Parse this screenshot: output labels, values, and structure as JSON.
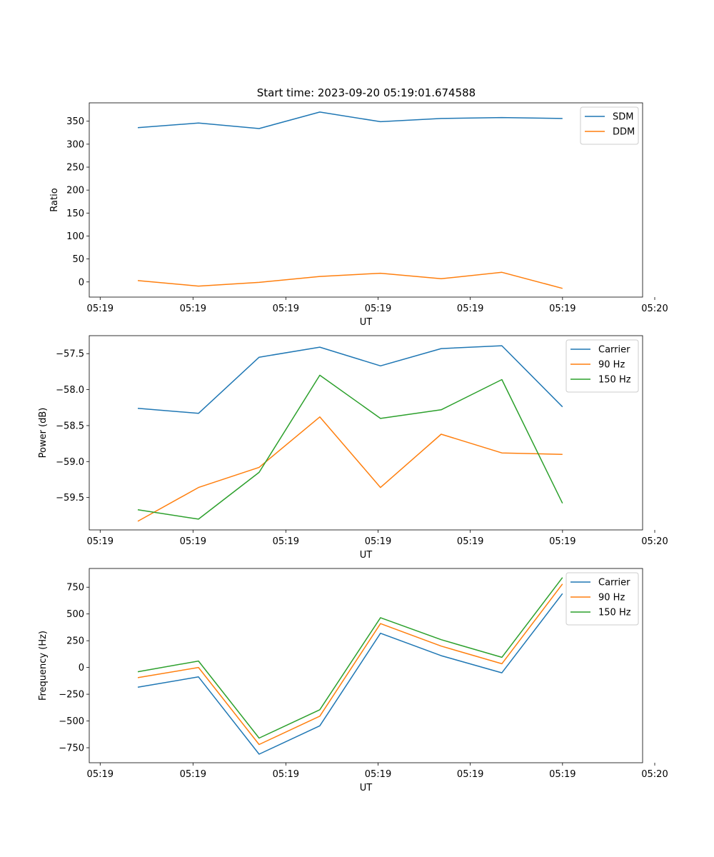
{
  "figure": {
    "title": "Start time: 2023-09-20 05:19:01.674588"
  },
  "chart_data": [
    {
      "type": "line",
      "title": "Start time: 2023-09-20 05:19:01.674588",
      "xlabel": "UT",
      "ylabel": "Ratio",
      "x": [
        1,
        2,
        3,
        4,
        5,
        6,
        7,
        8
      ],
      "xlim": [
        0.2,
        9.32
      ],
      "xticks": [
        0.38,
        1.91,
        3.44,
        4.96,
        6.48,
        8.0,
        9.52
      ],
      "xtick_labels": [
        "05:19",
        "05:19",
        "05:19",
        "05:19",
        "05:19",
        "05:19",
        "05:20"
      ],
      "ylim": [
        -33,
        390
      ],
      "yticks": [
        0,
        50,
        100,
        150,
        200,
        250,
        300,
        350
      ],
      "ytick_labels": [
        "0",
        "50",
        "100",
        "150",
        "200",
        "250",
        "300",
        "350"
      ],
      "legend_position": "top-right",
      "series": [
        {
          "name": "SDM",
          "color": "#1f77b4",
          "values": [
            336,
            346,
            334,
            370,
            349,
            356,
            358,
            356
          ]
        },
        {
          "name": "DDM",
          "color": "#ff7f0e",
          "values": [
            3,
            -9,
            -1,
            12,
            19,
            7,
            21,
            -14
          ]
        }
      ]
    },
    {
      "type": "line",
      "xlabel": "UT",
      "ylabel": "Power (dB)",
      "x": [
        1,
        2,
        3,
        4,
        5,
        6,
        7,
        8
      ],
      "xlim": [
        0.2,
        9.32
      ],
      "xticks": [
        0.38,
        1.91,
        3.44,
        4.96,
        6.48,
        8.0,
        9.52
      ],
      "xtick_labels": [
        "05:19",
        "05:19",
        "05:19",
        "05:19",
        "05:19",
        "05:19",
        "05:20"
      ],
      "ylim": [
        -59.95,
        -57.25
      ],
      "yticks": [
        -59.5,
        -59.0,
        -58.5,
        -58.0,
        -57.5
      ],
      "ytick_labels": [
        "−59.5",
        "−59.0",
        "−58.5",
        "−58.0",
        "−57.5"
      ],
      "legend_position": "top-right",
      "series": [
        {
          "name": "Carrier",
          "color": "#1f77b4",
          "values": [
            -58.26,
            -58.33,
            -57.55,
            -57.41,
            -57.67,
            -57.43,
            -57.39,
            -58.24
          ]
        },
        {
          "name": "90 Hz",
          "color": "#ff7f0e",
          "values": [
            -59.83,
            -59.36,
            -59.08,
            -58.38,
            -59.36,
            -58.62,
            -58.88,
            -58.9
          ]
        },
        {
          "name": "150 Hz",
          "color": "#2ca02c",
          "values": [
            -59.67,
            -59.8,
            -59.15,
            -57.8,
            -58.4,
            -58.28,
            -57.86,
            -59.58
          ]
        }
      ]
    },
    {
      "type": "line",
      "xlabel": "UT",
      "ylabel": "Frequency (Hz)",
      "x": [
        1,
        2,
        3,
        4,
        5,
        6,
        7,
        8
      ],
      "xlim": [
        0.2,
        9.32
      ],
      "xticks": [
        0.38,
        1.91,
        3.44,
        4.96,
        6.48,
        8.0,
        9.52
      ],
      "xtick_labels": [
        "05:19",
        "05:19",
        "05:19",
        "05:19",
        "05:19",
        "05:19",
        "05:20"
      ],
      "ylim": [
        -890,
        925
      ],
      "yticks": [
        -750,
        -500,
        -250,
        0,
        250,
        500,
        750
      ],
      "ytick_labels": [
        "−750",
        "−500",
        "−250",
        "0",
        "250",
        "500",
        "750"
      ],
      "legend_position": "top-right",
      "series": [
        {
          "name": "Carrier",
          "color": "#1f77b4",
          "values": [
            -185,
            -88,
            -810,
            -545,
            320,
            110,
            -50,
            690
          ]
        },
        {
          "name": "90 Hz",
          "color": "#ff7f0e",
          "values": [
            -95,
            0,
            -720,
            -455,
            410,
            200,
            35,
            780
          ]
        },
        {
          "name": "150 Hz",
          "color": "#2ca02c",
          "values": [
            -40,
            60,
            -660,
            -395,
            465,
            260,
            95,
            840
          ]
        }
      ]
    }
  ]
}
